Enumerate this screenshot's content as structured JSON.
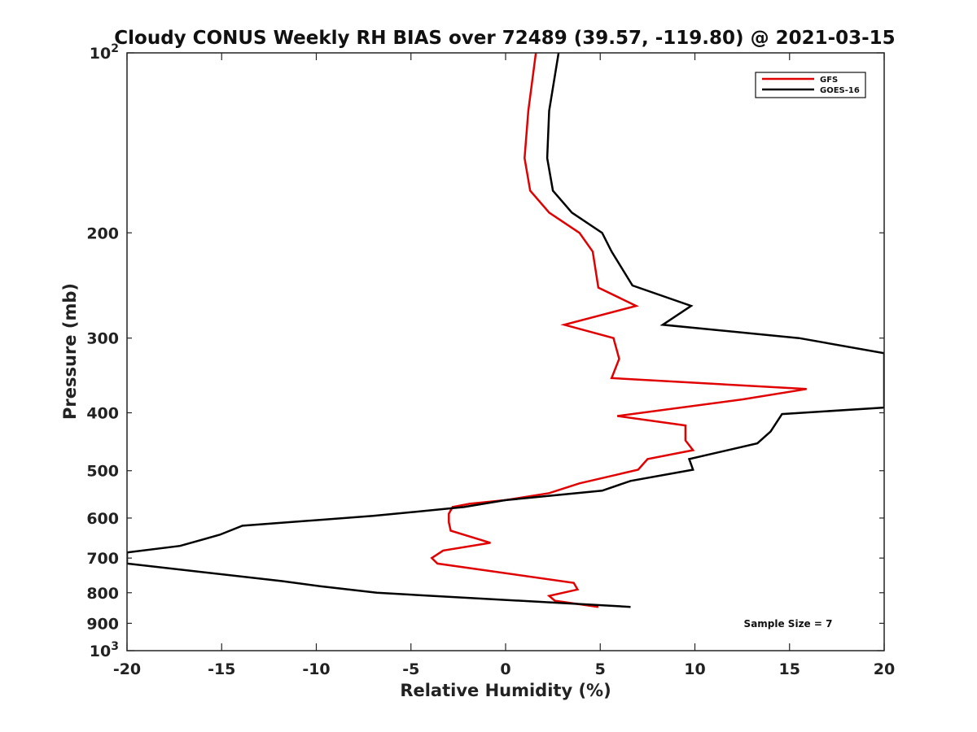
{
  "chart_data": {
    "type": "line",
    "title": "Cloudy CONUS Weekly RH BIAS over 72489 (39.57, -119.80) @ 2021-03-15",
    "xlabel": "Relative Humidity (%)",
    "ylabel": "Pressure (mb)",
    "xlim": [
      -20,
      20
    ],
    "ylim": [
      1000,
      100
    ],
    "yscale": "log",
    "x_ticks": [
      -20,
      -15,
      -10,
      -5,
      0,
      5,
      10,
      15,
      20
    ],
    "y_ticks": [
      {
        "value": 100,
        "base": "10",
        "exp": "2"
      },
      {
        "value": 200,
        "label": "200"
      },
      {
        "value": 300,
        "label": "300"
      },
      {
        "value": 400,
        "label": "400"
      },
      {
        "value": 500,
        "label": "500"
      },
      {
        "value": 600,
        "label": "600"
      },
      {
        "value": 700,
        "label": "700"
      },
      {
        "value": 800,
        "label": "800"
      },
      {
        "value": 900,
        "label": "900"
      },
      {
        "value": 1000,
        "base": "10",
        "exp": "3"
      }
    ],
    "grid": false,
    "legend_position": "top-right",
    "annotation": "Sample Size = 7",
    "series": [
      {
        "name": "GFS",
        "color": "#e00000",
        "points": [
          [
            1.6,
            100
          ],
          [
            1.2,
            125
          ],
          [
            1.0,
            150
          ],
          [
            1.3,
            170
          ],
          [
            2.3,
            185
          ],
          [
            3.9,
            200
          ],
          [
            4.6,
            215
          ],
          [
            4.9,
            247
          ],
          [
            6.9,
            265
          ],
          [
            3.1,
            285
          ],
          [
            5.7,
            300
          ],
          [
            6.0,
            325
          ],
          [
            5.6,
            350
          ],
          [
            15.9,
            365
          ],
          [
            12.5,
            380
          ],
          [
            5.9,
            405
          ],
          [
            9.5,
            420
          ],
          [
            9.5,
            445
          ],
          [
            9.9,
            462
          ],
          [
            7.5,
            478
          ],
          [
            7.0,
            498
          ],
          [
            3.9,
            525
          ],
          [
            2.3,
            545
          ],
          [
            0.0,
            560
          ],
          [
            -1.9,
            568
          ],
          [
            -2.8,
            575
          ],
          [
            -3.0,
            590
          ],
          [
            -3.0,
            610
          ],
          [
            -2.9,
            630
          ],
          [
            -0.8,
            660
          ],
          [
            -3.3,
            680
          ],
          [
            -3.9,
            700
          ],
          [
            -3.6,
            715
          ],
          [
            3.6,
            770
          ],
          [
            3.8,
            790
          ],
          [
            2.3,
            810
          ],
          [
            2.6,
            825
          ],
          [
            4.9,
            845
          ]
        ]
      },
      {
        "name": "GOES-16",
        "color": "#000000",
        "points": [
          [
            2.8,
            100
          ],
          [
            2.3,
            125
          ],
          [
            2.2,
            150
          ],
          [
            2.5,
            170
          ],
          [
            3.5,
            185
          ],
          [
            5.1,
            200
          ],
          [
            5.6,
            215
          ],
          [
            6.7,
            245
          ],
          [
            9.8,
            265
          ],
          [
            8.3,
            285
          ],
          [
            15.5,
            300
          ],
          [
            20.0,
            318
          ],
          [
            20.0,
            392
          ],
          [
            14.6,
            402
          ],
          [
            14.0,
            430
          ],
          [
            13.3,
            450
          ],
          [
            9.7,
            478
          ],
          [
            9.9,
            498
          ],
          [
            6.6,
            520
          ],
          [
            5.1,
            540
          ],
          [
            0.0,
            560
          ],
          [
            -2.2,
            575
          ],
          [
            -7.0,
            595
          ],
          [
            -13.9,
            618
          ],
          [
            -15.1,
            640
          ],
          [
            -17.2,
            668
          ],
          [
            -20.0,
            685
          ],
          [
            -20.0,
            715
          ],
          [
            -11.8,
            765
          ],
          [
            -9.8,
            780
          ],
          [
            -6.8,
            800
          ],
          [
            6.6,
            845
          ]
        ]
      }
    ]
  }
}
